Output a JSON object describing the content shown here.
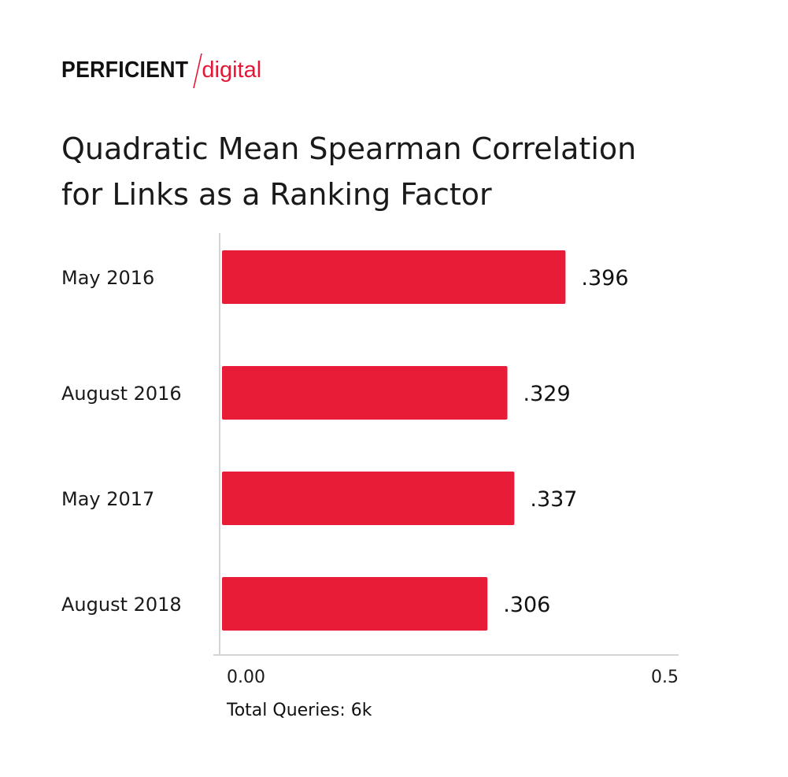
{
  "logo": {
    "left": "PERFICIENT",
    "right": "digital",
    "accent_color": "#e31837"
  },
  "title": {
    "line1": "Quadratic Mean Spearman Correlation",
    "line2": "for Links as a Ranking Factor"
  },
  "footnote": "Total Queries: 6k",
  "chart_data": {
    "type": "bar",
    "orientation": "horizontal",
    "title": "Quadratic Mean Spearman Correlation for Links as a Ranking Factor",
    "categories": [
      "May 2016",
      "August 2016",
      "May 2017",
      "August 2018"
    ],
    "values": [
      0.396,
      0.329,
      0.337,
      0.306
    ],
    "value_labels": [
      ".396",
      ".329",
      ".337",
      ".306"
    ],
    "xlim": [
      0,
      0.5
    ],
    "x_ticks": [
      0,
      0.5
    ],
    "x_tick_labels": [
      "0.00",
      "0.5"
    ],
    "xlabel": "",
    "ylabel": "",
    "grid": false,
    "legend": "none",
    "bar_color": "#e81c37",
    "axis_color": "#d4d4d4"
  }
}
